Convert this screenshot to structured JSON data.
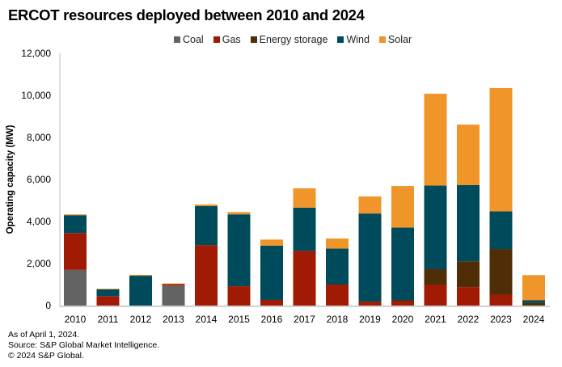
{
  "chart_data": {
    "type": "bar",
    "stacked": true,
    "title": "ERCOT resources deployed between 2010 and 2024",
    "xlabel": "",
    "ylabel": "Operating capacity (MW)",
    "ylim": [
      0,
      12000
    ],
    "yticks": [
      0,
      2000,
      4000,
      6000,
      8000,
      10000,
      12000
    ],
    "ytick_labels": [
      "0",
      "2,000",
      "4,000",
      "6,000",
      "8,000",
      "10,000",
      "12,000"
    ],
    "grid": false,
    "legend_position": "top-center",
    "categories": [
      "2010",
      "2011",
      "2012",
      "2013",
      "2014",
      "2015",
      "2016",
      "2017",
      "2018",
      "2019",
      "2020",
      "2021",
      "2022",
      "2023",
      "2024"
    ],
    "series": [
      {
        "name": "Coal",
        "color": "#636363",
        "values": [
          1700,
          0,
          0,
          950,
          0,
          0,
          0,
          0,
          0,
          0,
          0,
          0,
          0,
          0,
          0
        ]
      },
      {
        "name": "Gas",
        "color": "#a11a04",
        "values": [
          1750,
          450,
          0,
          70,
          2880,
          920,
          270,
          2600,
          1000,
          190,
          210,
          1000,
          880,
          520,
          0
        ]
      },
      {
        "name": "Energy storage",
        "color": "#4f2d06",
        "values": [
          0,
          0,
          0,
          0,
          0,
          0,
          0,
          0,
          0,
          0,
          60,
          730,
          1230,
          2170,
          130
        ]
      },
      {
        "name": "Wind",
        "color": "#004b5b",
        "values": [
          850,
          320,
          1420,
          0,
          1850,
          3420,
          2580,
          2060,
          1710,
          4190,
          3440,
          3980,
          3620,
          1790,
          130
        ]
      },
      {
        "name": "Solar",
        "color": "#f0952a",
        "values": [
          40,
          30,
          40,
          30,
          80,
          110,
          290,
          920,
          480,
          810,
          1980,
          4370,
          2880,
          5870,
          1190
        ]
      }
    ]
  },
  "footer": {
    "line1": "As of April 1, 2024.",
    "line2": "Source: S&P Global Market Intelligence.",
    "line3": "© 2024 S&P Global."
  }
}
